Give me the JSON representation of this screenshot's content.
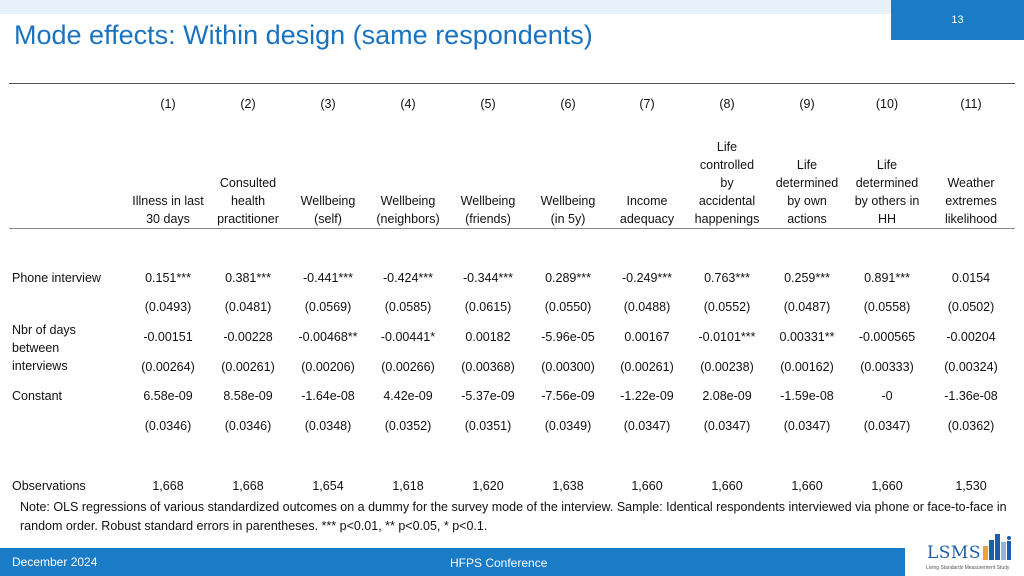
{
  "slide": {
    "title": "Mode effects: Within design (same respondents)",
    "page_number": "13"
  },
  "table": {
    "columns": [
      {
        "num": "(1)",
        "label": [
          "Illness in last",
          "30 days"
        ]
      },
      {
        "num": "(2)",
        "label": [
          "Consulted",
          "health",
          "practitioner"
        ]
      },
      {
        "num": "(3)",
        "label": [
          "Wellbeing",
          "(self)"
        ]
      },
      {
        "num": "(4)",
        "label": [
          "Wellbeing",
          "(neighbors)"
        ]
      },
      {
        "num": "(5)",
        "label": [
          "Wellbeing",
          "(friends)"
        ]
      },
      {
        "num": "(6)",
        "label": [
          "Wellbeing",
          "(in 5y)"
        ]
      },
      {
        "num": "(7)",
        "label": [
          "Income",
          "adequacy"
        ]
      },
      {
        "num": "(8)",
        "label": [
          "Life",
          "controlled",
          "by",
          "accidental",
          "happenings"
        ]
      },
      {
        "num": "(9)",
        "label": [
          "Life",
          "determined",
          "by own",
          "actions"
        ]
      },
      {
        "num": "(10)",
        "label": [
          "Life",
          "determined",
          "by others in",
          "HH"
        ]
      },
      {
        "num": "(11)",
        "label": [
          "Weather",
          "extremes",
          "likelihood"
        ]
      }
    ],
    "rows": [
      {
        "label": "Phone interview",
        "coef": [
          "0.151***",
          "0.381***",
          "-0.441***",
          "-0.424***",
          "-0.344***",
          "0.289***",
          "-0.249***",
          "0.763***",
          "0.259***",
          "0.891***",
          "0.0154"
        ],
        "se": [
          "(0.0493)",
          "(0.0481)",
          "(0.0569)",
          "(0.0585)",
          "(0.0615)",
          "(0.0550)",
          "(0.0488)",
          "(0.0552)",
          "(0.0487)",
          "(0.0558)",
          "(0.0502)"
        ]
      },
      {
        "label": "Nbr of days between interviews",
        "coef": [
          "-0.00151",
          "-0.00228",
          "-0.00468**",
          "-0.00441*",
          "0.00182",
          "-5.96e-05",
          "0.00167",
          "-0.0101***",
          "0.00331**",
          "-0.000565",
          "-0.00204"
        ],
        "se": [
          "(0.00264)",
          "(0.00261)",
          "(0.00206)",
          "(0.00266)",
          "(0.00368)",
          "(0.00300)",
          "(0.00261)",
          "(0.00238)",
          "(0.00162)",
          "(0.00333)",
          "(0.00324)"
        ]
      },
      {
        "label": "Constant",
        "coef": [
          "6.58e-09",
          "8.58e-09",
          "-1.64e-08",
          "4.42e-09",
          "-5.37e-09",
          "-7.56e-09",
          "-1.22e-09",
          "2.08e-09",
          "-1.59e-08",
          "-0",
          "-1.36e-08"
        ],
        "se": [
          "(0.0346)",
          "(0.0346)",
          "(0.0348)",
          "(0.0352)",
          "(0.0351)",
          "(0.0349)",
          "(0.0347)",
          "(0.0347)",
          "(0.0347)",
          "(0.0347)",
          "(0.0362)"
        ]
      }
    ],
    "observations": {
      "label": "Observations",
      "values": [
        "1,668",
        "1,668",
        "1,654",
        "1,618",
        "1,620",
        "1,638",
        "1,660",
        "1,660",
        "1,660",
        "1,660",
        "1,530"
      ]
    }
  },
  "note": "Note: OLS regressions of various standardized outcomes on a dummy for the survey mode of the interview. Sample: Identical respondents interviewed via phone or face-to-face in random order. Robust standard errors in parentheses. *** p<0.01, ** p<0.05, * p<0.1.",
  "footer": {
    "date": "December 2024",
    "event": "HFPS Conference",
    "logo_text": "LSMS",
    "logo_subtext": "Living Standards Measurement Study"
  }
}
